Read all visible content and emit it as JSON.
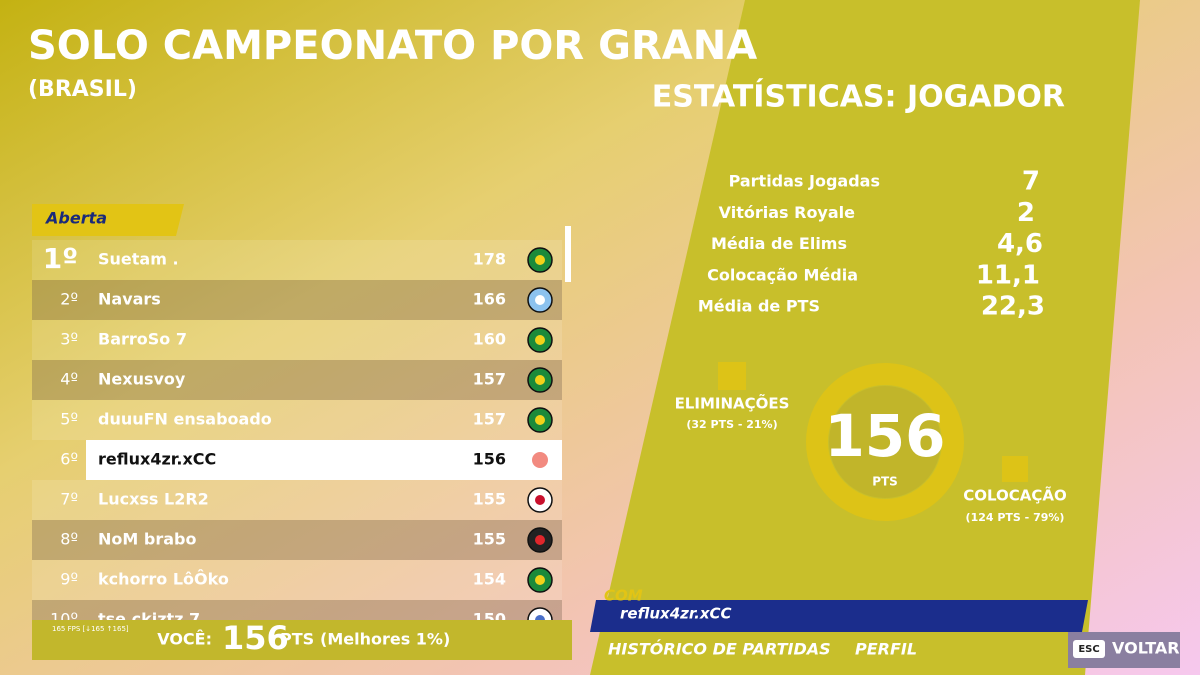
{
  "header": {
    "title": "SOLO CAMPEONATO POR GRANA",
    "subtitle": "(BRASIL)"
  },
  "stats": {
    "title": "ESTATÍSTICAS: JOGADOR",
    "rows": [
      [
        "Partidas Jogadas",
        "7"
      ],
      [
        "Vitórias Royale",
        "2"
      ],
      [
        "Média de Elims",
        "4,6"
      ],
      [
        "Colocação Média",
        "11,1"
      ],
      [
        "Média de PTS",
        "22,3"
      ]
    ]
  },
  "score": {
    "value": "156",
    "unit": "PTS",
    "elims": {
      "label": "ELIMINAÇÕES",
      "detail": "(32 PTS - 21%)"
    },
    "placement": {
      "label": "COLOCAÇÃO",
      "detail": "(124 PTS - 79%)"
    }
  },
  "leaderboard": {
    "tab": "Aberta",
    "rows": [
      [
        "1º",
        "Suetam .",
        "178"
      ],
      [
        "2º",
        "Navars",
        "166"
      ],
      [
        "3º",
        "BarroSo 7",
        "160"
      ],
      [
        "4º",
        "Nexusvoy",
        "157"
      ],
      [
        "5º",
        "duuuFN ensaboado",
        "157"
      ],
      [
        "6º",
        "reflux4zr.xCC",
        "156"
      ],
      [
        "7º",
        "Lucxss L2R2",
        "155"
      ],
      [
        "8º",
        "NoM brabo",
        "155"
      ],
      [
        "9º",
        "kchorro LôÔko",
        "154"
      ],
      [
        "10º",
        "tse ckiztz 7",
        "150"
      ]
    ],
    "you": {
      "label": "VOCÊ:",
      "points": "156",
      "unit": "PTS",
      "best": "(Melhores 1%)"
    },
    "fps": "165 FPS [↓165 ↑165]"
  },
  "player": {
    "prefix": "COM",
    "name": "reflux4zr.xCC"
  },
  "nav": {
    "history": "HISTÓRICO DE PARTIDAS",
    "profile": "PERFIL",
    "key": "ESC",
    "back": "VOLTAR"
  }
}
